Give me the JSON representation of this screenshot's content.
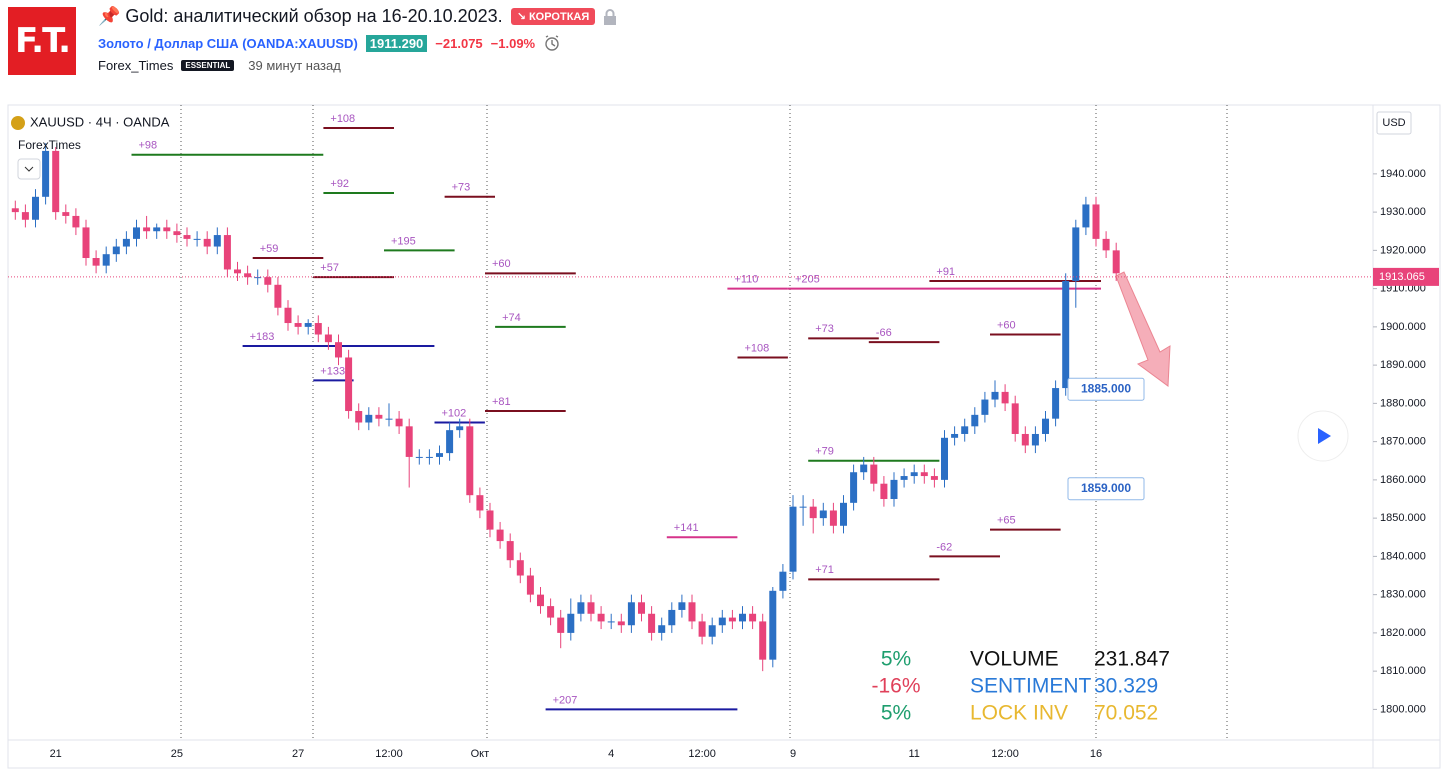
{
  "header": {
    "logo": "F.T.",
    "title": "📌 Gold: аналитический обзор на 16-20.10.2023.",
    "badge": "↘ КОРОТКАЯ",
    "symbol": "Золото / Доллар США (OANDA:XAUUSD)",
    "price": "1911.290",
    "change": "−21.075",
    "change_pct": "−1.09%",
    "author": "Forex_Times",
    "plan": "ESSENTIAL",
    "time": "39 минут назад"
  },
  "chart_data": {
    "type": "candlestick",
    "legend": "XAUUSD · 4Ч · OANDA",
    "indicator": "ForexTimes",
    "currency": "USD",
    "up_color": "#2b6fc4",
    "down_color": "#e8437a",
    "grid": false,
    "level_label_color": "#a855c0",
    "categories": [
      null,
      null,
      null,
      null,
      "21",
      null,
      null,
      null,
      null,
      null,
      null,
      null,
      null,
      null,
      null,
      null,
      "25",
      null,
      null,
      null,
      null,
      null,
      null,
      null,
      null,
      null,
      null,
      null,
      "27",
      null,
      null,
      null,
      null,
      null,
      null,
      null,
      null,
      "12:00",
      null,
      null,
      null,
      null,
      null,
      null,
      null,
      null,
      "Окт",
      null,
      null,
      null,
      null,
      null,
      null,
      null,
      null,
      null,
      null,
      null,
      null,
      "4",
      null,
      null,
      null,
      null,
      null,
      null,
      null,
      null,
      "12:00",
      null,
      null,
      null,
      null,
      null,
      null,
      null,
      null,
      "9",
      null,
      null,
      null,
      null,
      null,
      null,
      null,
      null,
      null,
      null,
      null,
      "11",
      null,
      null,
      null,
      null,
      null,
      null,
      null,
      null,
      "12:00",
      null,
      null,
      null,
      null,
      null,
      null,
      null,
      null,
      "16",
      null,
      null
    ],
    "open": [
      1931,
      1930,
      1928,
      1934,
      1946,
      1930,
      1929,
      1926,
      1918,
      1916,
      1919,
      1921,
      1923,
      1926,
      1925,
      1926,
      1925,
      1924,
      1923,
      1923,
      1921,
      1924,
      1915,
      1914,
      1913,
      1913,
      1911,
      1905,
      1901,
      1900,
      1901,
      1898,
      1896,
      1892,
      1878,
      1875,
      1877,
      1876,
      1876,
      1874,
      1866,
      1866,
      1866,
      1867,
      1873,
      1874,
      1856,
      1852,
      1847,
      1844,
      1839,
      1835,
      1830,
      1827,
      1824,
      1820,
      1825,
      1828,
      1825,
      1823,
      1823,
      1822,
      1828,
      1825,
      1820,
      1822,
      1826,
      1828,
      1823,
      1819,
      1822,
      1824,
      1823,
      1825,
      1823,
      1813,
      1831,
      1836,
      1853,
      1853,
      1850,
      1852,
      1848,
      1854,
      1862,
      1864,
      1859,
      1855,
      1860,
      1861,
      1862,
      1861,
      1860,
      1871,
      1872,
      1874,
      1877,
      1881,
      1883,
      1880,
      1872,
      1869,
      1872,
      1876,
      1884,
      1912,
      1926,
      1932,
      1923,
      1920
    ],
    "high": [
      1933,
      1932,
      1936,
      1948,
      1947,
      1932,
      1931,
      1928,
      1920,
      1921,
      1923,
      1925,
      1928,
      1929,
      1927,
      1928,
      1927,
      1926,
      1925,
      1925,
      1926,
      1926,
      1917,
      1916,
      1915,
      1915,
      1913,
      1907,
      1903,
      1902,
      1903,
      1900,
      1898,
      1894,
      1880,
      1879,
      1879,
      1880,
      1878,
      1876,
      1868,
      1868,
      1869,
      1875,
      1876,
      1876,
      1858,
      1854,
      1849,
      1846,
      1841,
      1837,
      1832,
      1829,
      1826,
      1829,
      1830,
      1830,
      1827,
      1825,
      1825,
      1830,
      1830,
      1827,
      1824,
      1828,
      1830,
      1830,
      1825,
      1824,
      1826,
      1826,
      1827,
      1827,
      1825,
      1832,
      1838,
      1856,
      1856,
      1855,
      1854,
      1854,
      1856,
      1864,
      1866,
      1866,
      1861,
      1862,
      1863,
      1864,
      1864,
      1863,
      1873,
      1874,
      1876,
      1879,
      1883,
      1886,
      1885,
      1882,
      1874,
      1874,
      1878,
      1886,
      1914,
      1928,
      1934,
      1934,
      1925,
      1922
    ],
    "low": [
      1928,
      1926,
      1926,
      1932,
      1928,
      1927,
      1924,
      1916,
      1914,
      1914,
      1917,
      1919,
      1921,
      1923,
      1923,
      1923,
      1922,
      1921,
      1921,
      1919,
      1919,
      1913,
      1912,
      1911,
      1911,
      1909,
      1903,
      1899,
      1898,
      1898,
      1896,
      1894,
      1890,
      1876,
      1873,
      1873,
      1874,
      1874,
      1872,
      1858,
      1864,
      1864,
      1864,
      1865,
      1871,
      1854,
      1850,
      1845,
      1842,
      1837,
      1833,
      1828,
      1825,
      1822,
      1816,
      1818,
      1823,
      1823,
      1821,
      1821,
      1820,
      1820,
      1823,
      1818,
      1818,
      1820,
      1824,
      1821,
      1817,
      1817,
      1820,
      1821,
      1821,
      1821,
      1810,
      1811,
      1829,
      1834,
      1848,
      1846,
      1848,
      1846,
      1846,
      1852,
      1860,
      1857,
      1853,
      1853,
      1858,
      1859,
      1859,
      1858,
      1858,
      1869,
      1870,
      1872,
      1875,
      1879,
      1878,
      1870,
      1867,
      1867,
      1870,
      1874,
      1882,
      1905,
      1924,
      1921,
      1918,
      1912
    ],
    "close": [
      1930,
      1928,
      1934,
      1946,
      1930,
      1929,
      1926,
      1918,
      1916,
      1919,
      1921,
      1923,
      1926,
      1925,
      1926,
      1925,
      1924,
      1923,
      1923,
      1921,
      1924,
      1915,
      1914,
      1913,
      1913,
      1911,
      1905,
      1901,
      1900,
      1901,
      1898,
      1896,
      1892,
      1878,
      1875,
      1877,
      1876,
      1876,
      1874,
      1866,
      1866,
      1866,
      1867,
      1873,
      1874,
      1856,
      1852,
      1847,
      1844,
      1839,
      1835,
      1830,
      1827,
      1824,
      1820,
      1825,
      1828,
      1825,
      1823,
      1823,
      1822,
      1828,
      1825,
      1820,
      1822,
      1826,
      1828,
      1823,
      1819,
      1822,
      1824,
      1823,
      1825,
      1823,
      1813,
      1831,
      1836,
      1853,
      1853,
      1850,
      1852,
      1848,
      1854,
      1862,
      1864,
      1859,
      1855,
      1860,
      1861,
      1862,
      1861,
      1860,
      1871,
      1872,
      1874,
      1877,
      1881,
      1883,
      1880,
      1872,
      1869,
      1872,
      1876,
      1884,
      1912,
      1926,
      1932,
      1923,
      1920,
      1914
    ],
    "ylim": [
      1792,
      1958
    ],
    "yticks": [
      {
        "value": 1800,
        "label": "1800.000"
      },
      {
        "value": 1810,
        "label": "1810.000"
      },
      {
        "value": 1820,
        "label": "1820.000"
      },
      {
        "value": 1830,
        "label": "1830.000"
      },
      {
        "value": 1840,
        "label": "1840.000"
      },
      {
        "value": 1850,
        "label": "1850.000"
      },
      {
        "value": 1860,
        "label": "1860.000"
      },
      {
        "value": 1870,
        "label": "1870.000"
      },
      {
        "value": 1880,
        "label": "1880.000"
      },
      {
        "value": 1890,
        "label": "1890.000"
      },
      {
        "value": 1900,
        "label": "1900.000"
      },
      {
        "value": 1910,
        "label": "1910.000"
      },
      {
        "value": 1920,
        "label": "1920.000"
      },
      {
        "value": 1930,
        "label": "1930.000"
      },
      {
        "value": 1940,
        "label": "1940.000"
      }
    ],
    "last_price": {
      "value": 1913.065,
      "label": "1913.065"
    },
    "price_boxes": [
      {
        "value": 1885,
        "label": "1885.000"
      },
      {
        "value": 1859,
        "label": "1859.000"
      }
    ],
    "levels": [
      {
        "label": "+108",
        "price": 1952,
        "from": 31,
        "to": 37,
        "color": "#7a0f1f"
      },
      {
        "label": "+98",
        "price": 1945,
        "from": 12,
        "to": 30,
        "color": "#1e7a1e"
      },
      {
        "label": "+92",
        "price": 1935,
        "from": 31,
        "to": 37,
        "color": "#1e7a1e"
      },
      {
        "label": "+59",
        "price": 1918,
        "from": 24,
        "to": 30,
        "color": "#7a0f1f"
      },
      {
        "label": "+57",
        "price": 1913,
        "from": 30,
        "to": 37,
        "color": "#7a0f1f"
      },
      {
        "label": "+195",
        "price": 1920,
        "from": 37,
        "to": 43,
        "color": "#1e7a1e"
      },
      {
        "label": "+73",
        "price": 1934,
        "from": 43,
        "to": 47,
        "color": "#7a0f1f"
      },
      {
        "label": "+60",
        "price": 1914,
        "from": 47,
        "to": 55,
        "color": "#7a0f1f"
      },
      {
        "label": "+183",
        "price": 1895,
        "from": 23,
        "to": 41,
        "color": "#1a1aa0"
      },
      {
        "label": "+133",
        "price": 1886,
        "from": 30,
        "to": 33,
        "color": "#1a1aa0"
      },
      {
        "label": "+102",
        "price": 1875,
        "from": 42,
        "to": 46,
        "color": "#1a1aa0"
      },
      {
        "label": "+74",
        "price": 1900,
        "from": 48,
        "to": 54,
        "color": "#1e7a1e"
      },
      {
        "label": "+81",
        "price": 1878,
        "from": 47,
        "to": 54,
        "color": "#7a0f1f"
      },
      {
        "label": "+141",
        "price": 1845,
        "from": 65,
        "to": 71,
        "color": "#d6338a"
      },
      {
        "label": "+207",
        "price": 1800,
        "from": 53,
        "to": 71,
        "color": "#1a1aa0"
      },
      {
        "label": "+110",
        "price": 1910,
        "from": 71,
        "to": 76,
        "color": "#d6338a"
      },
      {
        "label": "+205",
        "price": 1910,
        "from": 77,
        "to": 107,
        "color": "#d6338a"
      },
      {
        "label": "+108",
        "price": 1892,
        "from": 72,
        "to": 76,
        "color": "#7a0f1f"
      },
      {
        "label": "+73",
        "price": 1897,
        "from": 79,
        "to": 85,
        "color": "#7a0f1f"
      },
      {
        "label": "+79",
        "price": 1865,
        "from": 79,
        "to": 91,
        "color": "#1e7a1e"
      },
      {
        "label": "-66",
        "price": 1896,
        "from": 85,
        "to": 91,
        "color": "#7a0f1f"
      },
      {
        "label": "+71",
        "price": 1834,
        "from": 79,
        "to": 91,
        "color": "#7a0f1f"
      },
      {
        "label": "+91",
        "price": 1912,
        "from": 91,
        "to": 107,
        "color": "#7a0f1f"
      },
      {
        "label": "+60",
        "price": 1898,
        "from": 97,
        "to": 103,
        "color": "#7a0f1f"
      },
      {
        "label": "-62",
        "price": 1840,
        "from": 91,
        "to": 97,
        "color": "#7a0f1f"
      },
      {
        "label": "+65",
        "price": 1847,
        "from": 97,
        "to": 103,
        "color": "#7a0f1f"
      }
    ],
    "stats": [
      {
        "pct": "5%",
        "pct_color": "#1e9e6e",
        "name": "VOLUME",
        "name_color": "#111111",
        "value": "231.847",
        "value_color": "#111111"
      },
      {
        "pct": "-16%",
        "pct_color": "#e0405a",
        "name": "SENTIMENT",
        "name_color": "#2a7ad8",
        "value": "30.329",
        "value_color": "#2a7ad8"
      },
      {
        "pct": "5%",
        "pct_color": "#1e9e6e",
        "name": "LOCK INV",
        "name_color": "#e8b830",
        "value": "70.052",
        "value_color": "#e8b830"
      }
    ]
  }
}
